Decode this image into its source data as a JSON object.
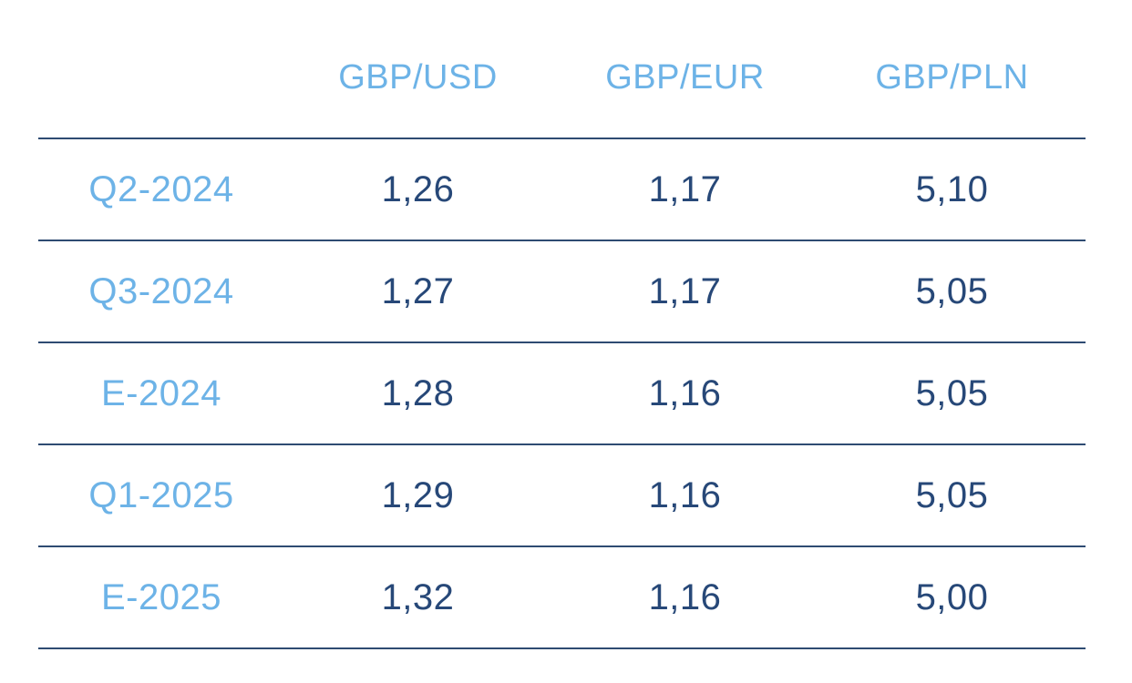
{
  "colors": {
    "background": "#ffffff",
    "accent_blue": "#6db3e7",
    "value_navy": "#274878",
    "line_navy": "#2e4b72"
  },
  "table": {
    "header": [
      "",
      "GBP/USD",
      "GBP/EUR",
      "GBP/PLN"
    ],
    "rows": [
      {
        "label": "Q2-2024",
        "cells": [
          "1,26",
          "1,17",
          "5,10"
        ]
      },
      {
        "label": "Q3-2024",
        "cells": [
          "1,27",
          "1,17",
          "5,05"
        ]
      },
      {
        "label": "E-2024",
        "cells": [
          "1,28",
          "1,16",
          "5,05"
        ]
      },
      {
        "label": "Q1-2025",
        "cells": [
          "1,29",
          "1,16",
          "5,05"
        ]
      },
      {
        "label": "E-2025",
        "cells": [
          "1,32",
          "1,16",
          "5,00"
        ]
      }
    ]
  },
  "chart_data": {
    "type": "table",
    "columns": [
      "GBP/USD",
      "GBP/EUR",
      "GBP/PLN"
    ],
    "row_labels": [
      "Q2-2024",
      "Q3-2024",
      "E-2024",
      "Q1-2025",
      "E-2025"
    ],
    "values": [
      [
        1.26,
        1.17,
        5.1
      ],
      [
        1.27,
        1.17,
        5.05
      ],
      [
        1.28,
        1.16,
        5.05
      ],
      [
        1.29,
        1.16,
        5.05
      ],
      [
        1.32,
        1.16,
        5.0
      ]
    ],
    "decimal_separator": ","
  }
}
